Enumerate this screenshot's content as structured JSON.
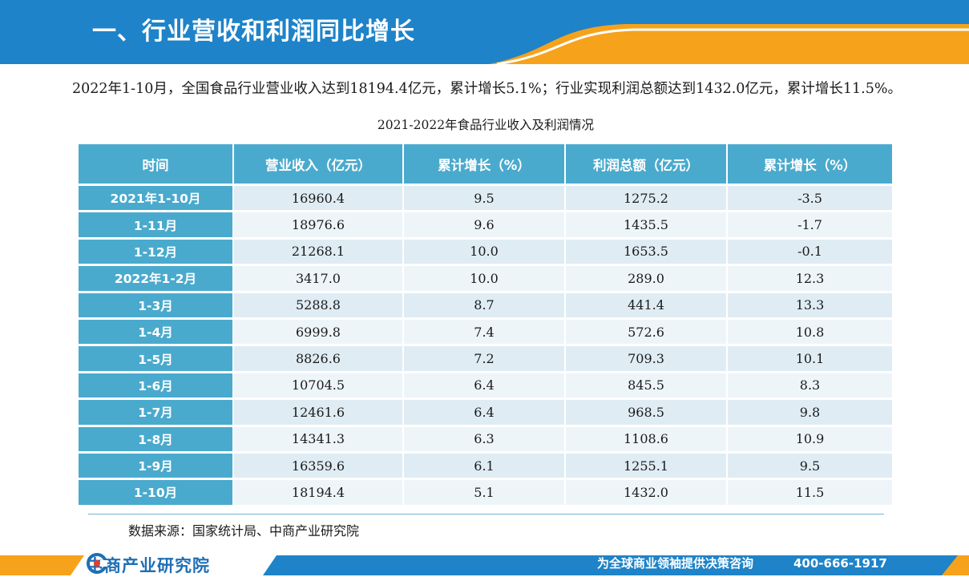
{
  "header": {
    "title": "一、行业营收和利润同比增长"
  },
  "intro": {
    "text": "2022年1-10月，全国食品行业营业收入达到18194.4亿元，累计增长5.1%；行业实现利润总额达到1432.0亿元，累计增长11.5%。"
  },
  "table": {
    "caption": "2021-2022年食品行业收入及利润情况",
    "columns": [
      "时间",
      "营业收入（亿元）",
      "累计增长（%）",
      "利润总额（亿元）",
      "累计增长（%）"
    ],
    "rows": [
      [
        "2021年1-10月",
        "16960.4",
        "9.5",
        "1275.2",
        "-3.5"
      ],
      [
        "1-11月",
        "18976.6",
        "9.6",
        "1435.5",
        "-1.7"
      ],
      [
        "1-12月",
        "21268.1",
        "10.0",
        "1653.5",
        "-0.1"
      ],
      [
        "2022年1-2月",
        "3417.0",
        "10.0",
        "289.0",
        "12.3"
      ],
      [
        "1-3月",
        "5288.8",
        "8.7",
        "441.4",
        "13.3"
      ],
      [
        "1-4月",
        "6999.8",
        "7.4",
        "572.6",
        "10.8"
      ],
      [
        "1-5月",
        "8826.6",
        "7.2",
        "709.3",
        "10.1"
      ],
      [
        "1-6月",
        "10704.5",
        "6.4",
        "845.5",
        "8.3"
      ],
      [
        "1-7月",
        "12461.6",
        "6.4",
        "968.5",
        "9.8"
      ],
      [
        "1-8月",
        "14341.3",
        "6.3",
        "1108.6",
        "10.9"
      ],
      [
        "1-9月",
        "16359.6",
        "6.1",
        "1255.1",
        "9.5"
      ],
      [
        "1-10月",
        "18194.4",
        "5.1",
        "1432.0",
        "11.5"
      ]
    ]
  },
  "source": {
    "text": "数据来源：国家统计局、中商产业研究院"
  },
  "footer": {
    "logo_text": "中商产业研究院",
    "slogan": "为全球商业领袖提供决策咨询",
    "phone": "400-666-1917"
  },
  "colors": {
    "header_blue": "#1e83c8",
    "accent_orange": "#f7a21b",
    "table_blue": "#4aaacd",
    "row_light": "#dfecf3",
    "row_lighter": "#eef5f9",
    "logo_blue": "#1f6fb5"
  }
}
